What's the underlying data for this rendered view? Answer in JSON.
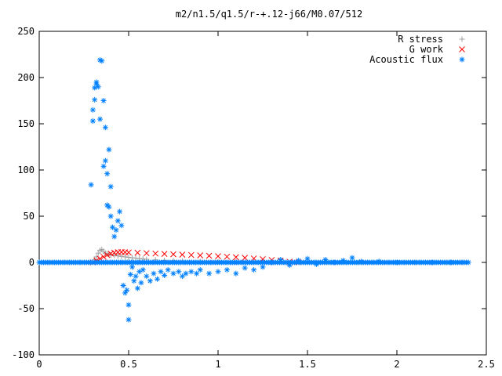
{
  "chart_data": {
    "type": "scatter",
    "title": "m2/n1.5/q1.5/r-+.12-j66/M0.07/512",
    "xlabel": "",
    "ylabel": "",
    "xlim": [
      0,
      2.5
    ],
    "ylim": [
      -100,
      250
    ],
    "x_ticks": [
      "0",
      "0.5",
      "1",
      "1.5",
      "2",
      "2.5"
    ],
    "y_ticks": [
      "-100",
      "-50",
      "0",
      "50",
      "100",
      "150",
      "200",
      "250"
    ],
    "grid": false,
    "legend_position": "top-right",
    "series": [
      {
        "name": "R stress",
        "marker": "+",
        "color": "#a0a0a0",
        "points": [
          [
            0.3,
            0
          ],
          [
            0.31,
            3
          ],
          [
            0.32,
            6
          ],
          [
            0.33,
            10
          ],
          [
            0.34,
            13
          ],
          [
            0.35,
            14
          ],
          [
            0.36,
            12
          ],
          [
            0.37,
            10
          ],
          [
            0.38,
            9
          ],
          [
            0.39,
            8.5
          ],
          [
            0.4,
            8
          ],
          [
            0.42,
            7.5
          ],
          [
            0.44,
            7
          ],
          [
            0.46,
            6.5
          ],
          [
            0.48,
            6
          ],
          [
            0.5,
            5.5
          ],
          [
            0.52,
            5
          ],
          [
            0.54,
            4.6
          ],
          [
            0.56,
            4.2
          ],
          [
            0.58,
            3.8
          ],
          [
            0.6,
            3.4
          ],
          [
            0.65,
            2.8
          ],
          [
            0.7,
            2.2
          ],
          [
            0.75,
            1.8
          ],
          [
            0.8,
            1.5
          ],
          [
            0.9,
            1.0
          ],
          [
            1.0,
            0.7
          ],
          [
            1.1,
            0.4
          ],
          [
            1.2,
            0.2
          ],
          [
            1.3,
            0.1
          ]
        ]
      },
      {
        "name": "G work",
        "marker": "x",
        "color": "#ff0000",
        "points": [
          [
            0.3,
            0
          ],
          [
            0.32,
            2
          ],
          [
            0.34,
            4
          ],
          [
            0.36,
            6
          ],
          [
            0.38,
            8
          ],
          [
            0.4,
            9.5
          ],
          [
            0.42,
            10.5
          ],
          [
            0.44,
            11
          ],
          [
            0.46,
            11.2
          ],
          [
            0.48,
            11
          ],
          [
            0.5,
            10.8
          ],
          [
            0.55,
            10.5
          ],
          [
            0.6,
            10
          ],
          [
            0.65,
            9.6
          ],
          [
            0.7,
            9.2
          ],
          [
            0.75,
            8.8
          ],
          [
            0.8,
            8.4
          ],
          [
            0.85,
            8
          ],
          [
            0.9,
            7.6
          ],
          [
            0.95,
            7.2
          ],
          [
            1.0,
            6.7
          ],
          [
            1.05,
            6.2
          ],
          [
            1.1,
            5.6
          ],
          [
            1.15,
            5.0
          ],
          [
            1.2,
            4.3
          ],
          [
            1.25,
            3.5
          ],
          [
            1.3,
            2.6
          ],
          [
            1.35,
            1.6
          ],
          [
            1.4,
            0.8
          ],
          [
            1.45,
            0.2
          ]
        ]
      },
      {
        "name": "Acoustic flux",
        "marker": "*",
        "color": "#0080ff",
        "points": [
          [
            0.29,
            84
          ],
          [
            0.3,
            153
          ],
          [
            0.3,
            165
          ],
          [
            0.31,
            176
          ],
          [
            0.31,
            189
          ],
          [
            0.32,
            193
          ],
          [
            0.32,
            195
          ],
          [
            0.33,
            190
          ],
          [
            0.34,
            155
          ],
          [
            0.34,
            219
          ],
          [
            0.35,
            218
          ],
          [
            0.36,
            175
          ],
          [
            0.36,
            104
          ],
          [
            0.37,
            146
          ],
          [
            0.37,
            110
          ],
          [
            0.38,
            96
          ],
          [
            0.38,
            62
          ],
          [
            0.39,
            122
          ],
          [
            0.39,
            60
          ],
          [
            0.4,
            82
          ],
          [
            0.4,
            50
          ],
          [
            0.41,
            38
          ],
          [
            0.42,
            28
          ],
          [
            0.43,
            35
          ],
          [
            0.44,
            45
          ],
          [
            0.45,
            55
          ],
          [
            0.46,
            40
          ],
          [
            0.47,
            -25
          ],
          [
            0.48,
            -33
          ],
          [
            0.49,
            -30
          ],
          [
            0.5,
            -46
          ],
          [
            0.5,
            -62
          ],
          [
            0.51,
            -13
          ],
          [
            0.52,
            -5
          ],
          [
            0.53,
            -20
          ],
          [
            0.54,
            -15
          ],
          [
            0.55,
            -28
          ],
          [
            0.56,
            -10
          ],
          [
            0.57,
            -22
          ],
          [
            0.58,
            -8
          ],
          [
            0.6,
            -15
          ],
          [
            0.62,
            -20
          ],
          [
            0.64,
            -12
          ],
          [
            0.66,
            -18
          ],
          [
            0.68,
            -10
          ],
          [
            0.7,
            -14
          ],
          [
            0.72,
            -8
          ],
          [
            0.75,
            -12
          ],
          [
            0.78,
            -10
          ],
          [
            0.8,
            -15
          ],
          [
            0.82,
            -12
          ],
          [
            0.85,
            -10
          ],
          [
            0.88,
            -12
          ],
          [
            0.9,
            -8
          ],
          [
            0.95,
            -12
          ],
          [
            1.0,
            -10
          ],
          [
            1.05,
            -8
          ],
          [
            1.1,
            -12
          ],
          [
            1.15,
            -6
          ],
          [
            1.2,
            -8
          ],
          [
            1.25,
            -5
          ],
          [
            1.3,
            0
          ],
          [
            1.35,
            3
          ],
          [
            1.4,
            -3
          ],
          [
            1.45,
            2
          ],
          [
            1.5,
            4
          ],
          [
            1.55,
            -2
          ],
          [
            1.6,
            3
          ],
          [
            1.65,
            0
          ],
          [
            1.7,
            2
          ],
          [
            1.75,
            5
          ],
          [
            1.8,
            1
          ],
          [
            1.9,
            1
          ],
          [
            2.0,
            0
          ],
          [
            2.1,
            0
          ],
          [
            2.2,
            0
          ],
          [
            2.3,
            0
          ],
          [
            2.4,
            0
          ]
        ]
      }
    ]
  }
}
